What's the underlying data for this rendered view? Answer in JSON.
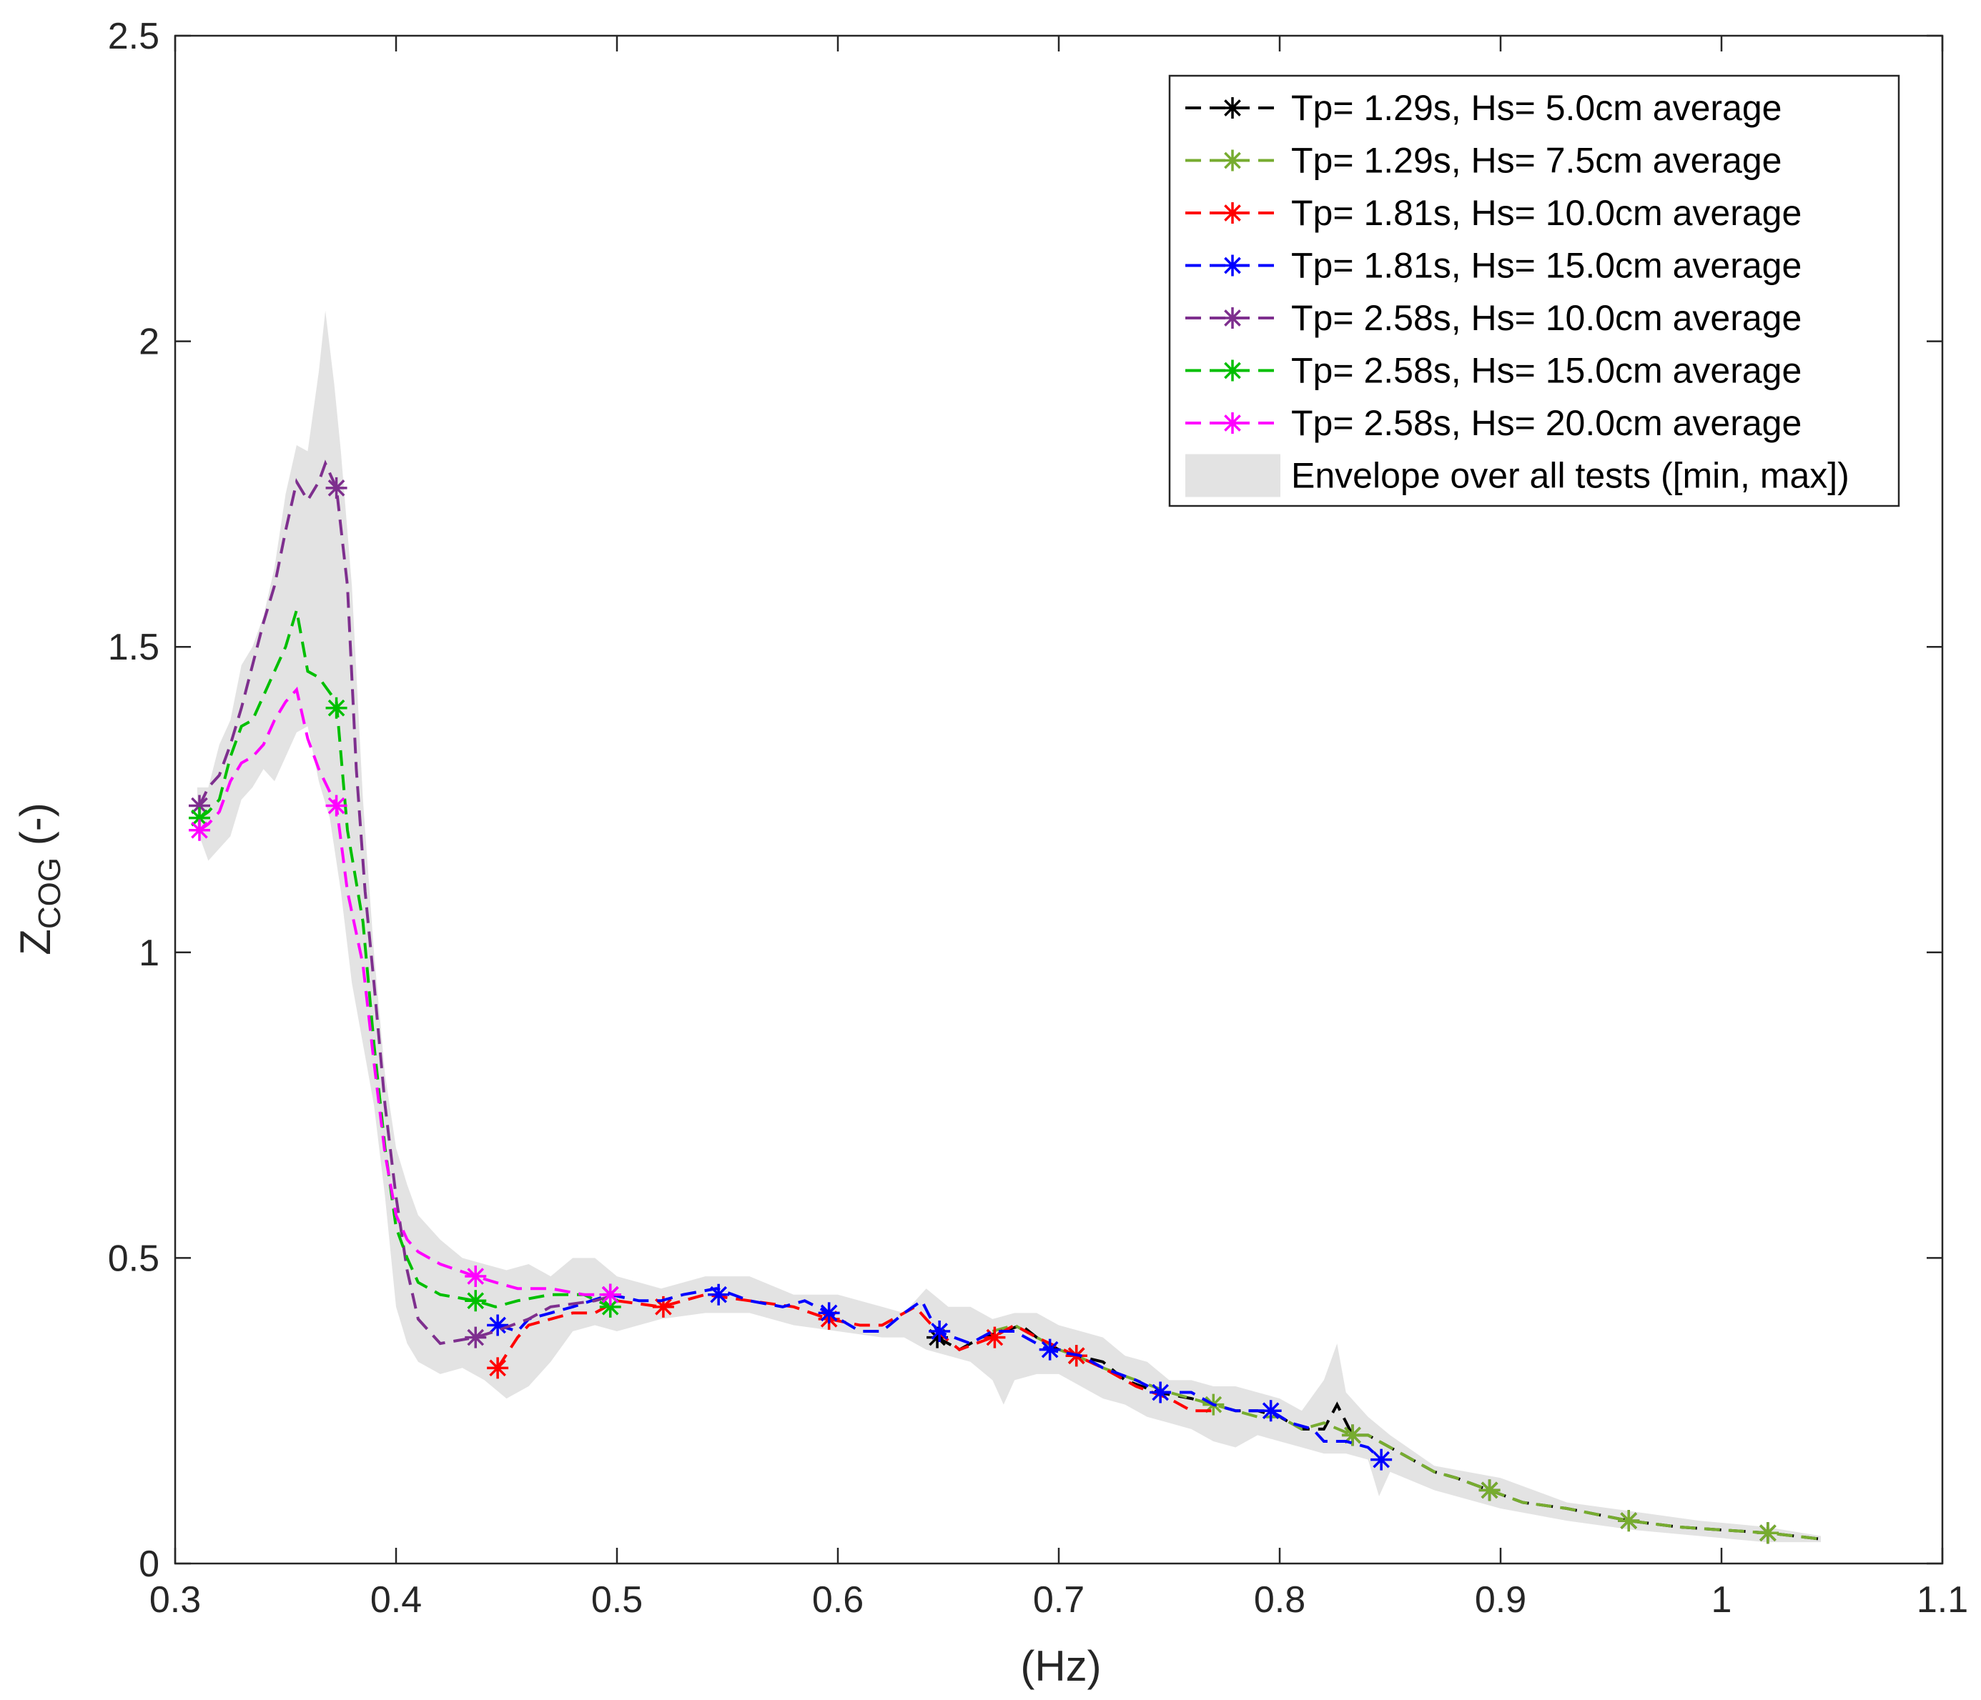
{
  "chart_data": {
    "type": "line",
    "title": "",
    "xlabel": "(Hz)",
    "ylabel": {
      "main": "Z",
      "subscript": "COG",
      "suffix": " (-)"
    },
    "xlim": [
      0.3,
      1.1
    ],
    "ylim": [
      0,
      2.5
    ],
    "xticks": [
      0.3,
      0.4,
      0.5,
      0.6,
      0.7,
      0.8,
      0.9,
      1,
      1.1
    ],
    "xtick_labels": [
      "0.3",
      "0.4",
      "0.5",
      "0.6",
      "0.7",
      "0.8",
      "0.9",
      "1",
      "1.1"
    ],
    "yticks": [
      0,
      0.5,
      1,
      1.5,
      2,
      2.5
    ],
    "ytick_labels": [
      "0",
      "0.5",
      "1",
      "1.5",
      "2",
      "2.5"
    ],
    "grid": false,
    "legend_position": "top-right",
    "envelope": {
      "name": "Envelope over all tests ([min, max])",
      "color": "#e3e3e3",
      "upper": [
        [
          0.31,
          1.27
        ],
        [
          0.315,
          1.27
        ],
        [
          0.32,
          1.34
        ],
        [
          0.325,
          1.38
        ],
        [
          0.33,
          1.47
        ],
        [
          0.335,
          1.5
        ],
        [
          0.34,
          1.55
        ],
        [
          0.345,
          1.63
        ],
        [
          0.35,
          1.75
        ],
        [
          0.355,
          1.83
        ],
        [
          0.36,
          1.82
        ],
        [
          0.365,
          1.95
        ],
        [
          0.368,
          2.05
        ],
        [
          0.372,
          1.93
        ],
        [
          0.375,
          1.82
        ],
        [
          0.38,
          1.6
        ],
        [
          0.385,
          1.25
        ],
        [
          0.39,
          1.0
        ],
        [
          0.395,
          0.8
        ],
        [
          0.4,
          0.68
        ],
        [
          0.405,
          0.62
        ],
        [
          0.41,
          0.57
        ],
        [
          0.42,
          0.53
        ],
        [
          0.43,
          0.5
        ],
        [
          0.44,
          0.49
        ],
        [
          0.45,
          0.48
        ],
        [
          0.46,
          0.49
        ],
        [
          0.47,
          0.47
        ],
        [
          0.48,
          0.5
        ],
        [
          0.49,
          0.5
        ],
        [
          0.5,
          0.47
        ],
        [
          0.52,
          0.45
        ],
        [
          0.54,
          0.47
        ],
        [
          0.56,
          0.47
        ],
        [
          0.58,
          0.44
        ],
        [
          0.6,
          0.44
        ],
        [
          0.62,
          0.42
        ],
        [
          0.63,
          0.41
        ],
        [
          0.64,
          0.45
        ],
        [
          0.65,
          0.42
        ],
        [
          0.66,
          0.42
        ],
        [
          0.67,
          0.4
        ],
        [
          0.68,
          0.41
        ],
        [
          0.69,
          0.41
        ],
        [
          0.7,
          0.39
        ],
        [
          0.71,
          0.38
        ],
        [
          0.72,
          0.37
        ],
        [
          0.73,
          0.34
        ],
        [
          0.74,
          0.33
        ],
        [
          0.75,
          0.3
        ],
        [
          0.76,
          0.3
        ],
        [
          0.77,
          0.29
        ],
        [
          0.78,
          0.29
        ],
        [
          0.79,
          0.28
        ],
        [
          0.8,
          0.27
        ],
        [
          0.81,
          0.25
        ],
        [
          0.82,
          0.3
        ],
        [
          0.826,
          0.36
        ],
        [
          0.83,
          0.28
        ],
        [
          0.84,
          0.24
        ],
        [
          0.85,
          0.21
        ],
        [
          0.87,
          0.16
        ],
        [
          0.9,
          0.14
        ],
        [
          0.93,
          0.1
        ],
        [
          0.96,
          0.085
        ],
        [
          0.99,
          0.07
        ],
        [
          1.02,
          0.06
        ],
        [
          1.045,
          0.045
        ]
      ],
      "lower": [
        [
          0.31,
          1.2
        ],
        [
          0.315,
          1.15
        ],
        [
          0.32,
          1.17
        ],
        [
          0.325,
          1.19
        ],
        [
          0.33,
          1.25
        ],
        [
          0.335,
          1.27
        ],
        [
          0.34,
          1.3
        ],
        [
          0.345,
          1.28
        ],
        [
          0.35,
          1.32
        ],
        [
          0.355,
          1.36
        ],
        [
          0.36,
          1.37
        ],
        [
          0.365,
          1.28
        ],
        [
          0.37,
          1.22
        ],
        [
          0.375,
          1.1
        ],
        [
          0.38,
          0.95
        ],
        [
          0.385,
          0.85
        ],
        [
          0.39,
          0.75
        ],
        [
          0.395,
          0.6
        ],
        [
          0.4,
          0.42
        ],
        [
          0.405,
          0.36
        ],
        [
          0.41,
          0.33
        ],
        [
          0.42,
          0.31
        ],
        [
          0.43,
          0.32
        ],
        [
          0.44,
          0.3
        ],
        [
          0.45,
          0.27
        ],
        [
          0.46,
          0.29
        ],
        [
          0.47,
          0.33
        ],
        [
          0.48,
          0.38
        ],
        [
          0.49,
          0.39
        ],
        [
          0.5,
          0.38
        ],
        [
          0.52,
          0.4
        ],
        [
          0.54,
          0.41
        ],
        [
          0.56,
          0.41
        ],
        [
          0.58,
          0.39
        ],
        [
          0.6,
          0.38
        ],
        [
          0.62,
          0.37
        ],
        [
          0.63,
          0.37
        ],
        [
          0.64,
          0.35
        ],
        [
          0.65,
          0.34
        ],
        [
          0.66,
          0.33
        ],
        [
          0.67,
          0.3
        ],
        [
          0.675,
          0.26
        ],
        [
          0.68,
          0.3
        ],
        [
          0.69,
          0.31
        ],
        [
          0.7,
          0.31
        ],
        [
          0.71,
          0.29
        ],
        [
          0.72,
          0.27
        ],
        [
          0.73,
          0.26
        ],
        [
          0.74,
          0.24
        ],
        [
          0.75,
          0.23
        ],
        [
          0.76,
          0.22
        ],
        [
          0.77,
          0.2
        ],
        [
          0.78,
          0.19
        ],
        [
          0.79,
          0.21
        ],
        [
          0.8,
          0.2
        ],
        [
          0.81,
          0.19
        ],
        [
          0.82,
          0.18
        ],
        [
          0.83,
          0.18
        ],
        [
          0.84,
          0.17
        ],
        [
          0.845,
          0.11
        ],
        [
          0.85,
          0.15
        ],
        [
          0.87,
          0.12
        ],
        [
          0.9,
          0.09
        ],
        [
          0.93,
          0.07
        ],
        [
          0.96,
          0.055
        ],
        [
          0.99,
          0.045
        ],
        [
          1.02,
          0.035
        ],
        [
          1.045,
          0.035
        ]
      ]
    },
    "series": [
      {
        "name": "Tp= 1.29s, Hs= 5.0cm average",
        "color": "#000000",
        "x": [
          0.645,
          0.655,
          0.665,
          0.675,
          0.683,
          0.69,
          0.7,
          0.708,
          0.72,
          0.73,
          0.745,
          0.76,
          0.77,
          0.78,
          0.79,
          0.8,
          0.81,
          0.82,
          0.826,
          0.833,
          0.84,
          0.85,
          0.86,
          0.87,
          0.88,
          0.895,
          0.91,
          0.93,
          0.958,
          0.98,
          1.0,
          1.021,
          1.045
        ],
        "y": [
          0.37,
          0.35,
          0.37,
          0.38,
          0.39,
          0.37,
          0.35,
          0.34,
          0.33,
          0.3,
          0.28,
          0.27,
          0.26,
          0.25,
          0.25,
          0.24,
          0.22,
          0.22,
          0.26,
          0.21,
          0.21,
          0.19,
          0.17,
          0.15,
          0.14,
          0.12,
          0.1,
          0.09,
          0.07,
          0.06,
          0.055,
          0.05,
          0.04
        ],
        "markers": [
          [
            0.645,
            0.37
          ],
          [
            0.708,
            0.34
          ],
          [
            0.833,
            0.21
          ],
          [
            0.895,
            0.12
          ],
          [
            0.958,
            0.07
          ],
          [
            1.021,
            0.05
          ]
        ]
      },
      {
        "name": "Tp= 1.29s, Hs= 7.5cm average",
        "color": "#77ac30",
        "x": [
          0.67,
          0.68,
          0.69,
          0.7,
          0.708,
          0.72,
          0.735,
          0.75,
          0.77,
          0.78,
          0.79,
          0.8,
          0.81,
          0.82,
          0.833,
          0.84,
          0.85,
          0.86,
          0.87,
          0.88,
          0.895,
          0.91,
          0.93,
          0.958,
          0.98,
          1.0,
          1.021,
          1.045
        ],
        "y": [
          0.38,
          0.39,
          0.37,
          0.35,
          0.34,
          0.32,
          0.3,
          0.28,
          0.26,
          0.25,
          0.24,
          0.24,
          0.22,
          0.23,
          0.21,
          0.21,
          0.19,
          0.17,
          0.15,
          0.14,
          0.12,
          0.1,
          0.09,
          0.07,
          0.06,
          0.055,
          0.05,
          0.04
        ],
        "markers": [
          [
            0.708,
            0.34
          ],
          [
            0.77,
            0.26
          ],
          [
            0.833,
            0.21
          ],
          [
            0.895,
            0.12
          ],
          [
            0.958,
            0.07
          ],
          [
            1.021,
            0.05
          ]
        ]
      },
      {
        "name": "Tp= 1.81s, Hs= 10.0cm average",
        "color": "#ff0000",
        "x": [
          0.446,
          0.455,
          0.46,
          0.47,
          0.48,
          0.49,
          0.5,
          0.52,
          0.54,
          0.56,
          0.58,
          0.596,
          0.61,
          0.62,
          0.635,
          0.645,
          0.655,
          0.67,
          0.68,
          0.69,
          0.708,
          0.72,
          0.735,
          0.75,
          0.76,
          0.77
        ],
        "y": [
          0.32,
          0.37,
          0.39,
          0.4,
          0.41,
          0.41,
          0.43,
          0.42,
          0.44,
          0.43,
          0.42,
          0.4,
          0.39,
          0.39,
          0.42,
          0.38,
          0.35,
          0.37,
          0.39,
          0.37,
          0.34,
          0.32,
          0.29,
          0.27,
          0.25,
          0.25
        ],
        "markers": [
          [
            0.446,
            0.32
          ],
          [
            0.521,
            0.42
          ],
          [
            0.596,
            0.4
          ],
          [
            0.671,
            0.37
          ],
          [
            0.708,
            0.34
          ]
        ]
      },
      {
        "name": "Tp= 1.81s, Hs= 15.0cm average",
        "color": "#0000ff",
        "x": [
          0.446,
          0.455,
          0.46,
          0.47,
          0.48,
          0.497,
          0.51,
          0.52,
          0.53,
          0.545,
          0.56,
          0.575,
          0.585,
          0.596,
          0.61,
          0.62,
          0.63,
          0.638,
          0.645,
          0.66,
          0.67,
          0.68,
          0.685,
          0.695,
          0.71,
          0.72,
          0.735,
          0.746,
          0.76,
          0.77,
          0.78,
          0.796,
          0.805,
          0.815,
          0.82,
          0.83,
          0.84,
          0.846
        ],
        "y": [
          0.39,
          0.38,
          0.4,
          0.41,
          0.42,
          0.44,
          0.43,
          0.43,
          0.44,
          0.45,
          0.43,
          0.42,
          0.43,
          0.41,
          0.38,
          0.38,
          0.41,
          0.43,
          0.38,
          0.36,
          0.38,
          0.38,
          0.37,
          0.35,
          0.34,
          0.32,
          0.3,
          0.28,
          0.28,
          0.26,
          0.25,
          0.25,
          0.23,
          0.22,
          0.2,
          0.2,
          0.19,
          0.17
        ],
        "markers": [
          [
            0.446,
            0.39
          ],
          [
            0.497,
            0.44
          ],
          [
            0.546,
            0.44
          ],
          [
            0.596,
            0.41
          ],
          [
            0.646,
            0.38
          ],
          [
            0.696,
            0.35
          ],
          [
            0.746,
            0.28
          ],
          [
            0.796,
            0.25
          ],
          [
            0.846,
            0.17
          ]
        ]
      },
      {
        "name": "Tp= 2.58s, Hs= 10.0cm average",
        "color": "#7e2f8e",
        "x": [
          0.311,
          0.315,
          0.32,
          0.325,
          0.33,
          0.335,
          0.34,
          0.345,
          0.35,
          0.355,
          0.36,
          0.365,
          0.368,
          0.373,
          0.378,
          0.382,
          0.386,
          0.39,
          0.395,
          0.4,
          0.405,
          0.41,
          0.42,
          0.436,
          0.445,
          0.46,
          0.47,
          0.49,
          0.5
        ],
        "y": [
          1.24,
          1.27,
          1.29,
          1.34,
          1.4,
          1.47,
          1.54,
          1.6,
          1.69,
          1.77,
          1.74,
          1.77,
          1.8,
          1.76,
          1.6,
          1.3,
          1.1,
          0.95,
          0.75,
          0.6,
          0.48,
          0.4,
          0.36,
          0.37,
          0.38,
          0.4,
          0.42,
          0.43,
          0.44
        ],
        "markers": [
          [
            0.311,
            1.24
          ],
          [
            0.373,
            1.76
          ],
          [
            0.436,
            0.37
          ],
          [
            0.497,
            0.44
          ]
        ]
      },
      {
        "name": "Tp= 2.58s, Hs= 15.0cm average",
        "color": "#00bf00",
        "x": [
          0.311,
          0.315,
          0.32,
          0.325,
          0.33,
          0.335,
          0.34,
          0.345,
          0.35,
          0.355,
          0.36,
          0.365,
          0.373,
          0.378,
          0.385,
          0.39,
          0.395,
          0.4,
          0.405,
          0.41,
          0.42,
          0.436,
          0.445,
          0.455,
          0.47,
          0.485,
          0.497
        ],
        "y": [
          1.22,
          1.23,
          1.25,
          1.32,
          1.37,
          1.38,
          1.42,
          1.46,
          1.5,
          1.56,
          1.46,
          1.45,
          1.41,
          1.2,
          1.05,
          0.85,
          0.68,
          0.55,
          0.5,
          0.46,
          0.44,
          0.43,
          0.42,
          0.43,
          0.44,
          0.44,
          0.42
        ],
        "markers": [
          [
            0.311,
            1.22
          ],
          [
            0.373,
            1.4
          ],
          [
            0.436,
            0.43
          ],
          [
            0.497,
            0.42
          ]
        ]
      },
      {
        "name": "Tp= 2.58s, Hs= 20.0cm average",
        "color": "#ff00ff",
        "x": [
          0.311,
          0.315,
          0.32,
          0.325,
          0.33,
          0.335,
          0.34,
          0.345,
          0.35,
          0.355,
          0.36,
          0.365,
          0.373,
          0.378,
          0.385,
          0.39,
          0.395,
          0.4,
          0.405,
          0.41,
          0.42,
          0.436,
          0.445,
          0.455,
          0.47,
          0.485,
          0.497
        ],
        "y": [
          1.2,
          1.21,
          1.23,
          1.28,
          1.31,
          1.32,
          1.34,
          1.38,
          1.41,
          1.43,
          1.35,
          1.3,
          1.24,
          1.1,
          0.98,
          0.82,
          0.67,
          0.57,
          0.53,
          0.51,
          0.49,
          0.47,
          0.46,
          0.45,
          0.45,
          0.44,
          0.44
        ],
        "markers": [
          [
            0.311,
            1.2
          ],
          [
            0.373,
            1.24
          ],
          [
            0.436,
            0.47
          ],
          [
            0.497,
            0.44
          ]
        ]
      }
    ]
  }
}
